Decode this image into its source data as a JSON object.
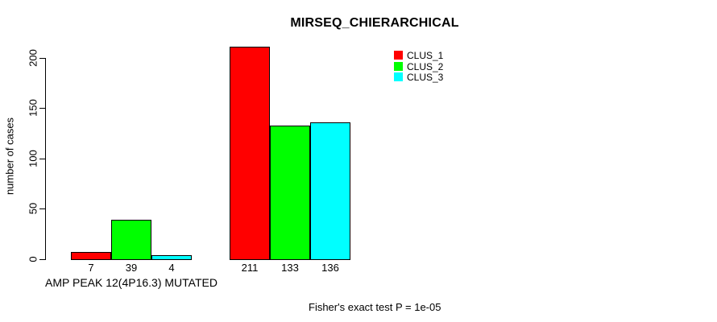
{
  "chart_data": {
    "type": "bar",
    "title": "MIRSEQ_CHIERARCHICAL",
    "ylabel": "number of cases",
    "ylim": [
      0,
      211
    ],
    "yticks": [
      0,
      50,
      100,
      150,
      200
    ],
    "grid": false,
    "legend_position": "top-right",
    "categories": [
      "AMP PEAK 12(4P16.3) MUTATED",
      ""
    ],
    "series": [
      {
        "name": "CLUS_1",
        "color": "#ff0000",
        "values": [
          7,
          211
        ]
      },
      {
        "name": "CLUS_2",
        "color": "#00ff00",
        "values": [
          39,
          133
        ]
      },
      {
        "name": "CLUS_3",
        "color": "#00ffff",
        "values": [
          4,
          136
        ]
      }
    ],
    "bar_value_labels": [
      [
        "7",
        "39",
        "4"
      ],
      [
        "211",
        "133",
        "136"
      ]
    ],
    "footnote": "Fisher's exact test P = 1e-05"
  },
  "colors": {
    "background": "#ffffff",
    "text": "#000000",
    "axis": "#000000",
    "bar_border": "#000000"
  }
}
